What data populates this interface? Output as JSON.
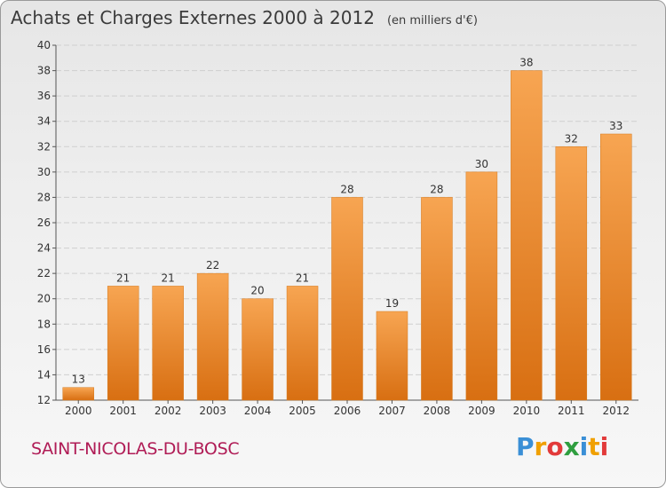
{
  "chart_data": {
    "type": "bar",
    "title": "Achats et Charges Externes 2000 à 2012",
    "subtitle": "(en milliers d'€)",
    "categories": [
      "2000",
      "2001",
      "2002",
      "2003",
      "2004",
      "2005",
      "2006",
      "2007",
      "2008",
      "2009",
      "2010",
      "2011",
      "2012"
    ],
    "values": [
      13,
      21,
      21,
      22,
      20,
      21,
      28,
      19,
      28,
      30,
      38,
      32,
      33
    ],
    "ylim": [
      12,
      40
    ],
    "yticks": [
      12,
      14,
      16,
      18,
      20,
      22,
      24,
      26,
      28,
      30,
      32,
      34,
      36,
      38,
      40
    ],
    "grid": true,
    "bar_color": "#f28c28"
  },
  "footer": {
    "city": "SAINT-NICOLAS-DU-BOSC",
    "city_color": "#b01c56",
    "logo_letters": [
      "P",
      "r",
      "o",
      "x",
      "i",
      "t",
      "i"
    ],
    "logo_colors": [
      "#3a8fd6",
      "#f0a000",
      "#e23a3a",
      "#2f9e3f",
      "#3a8fd6",
      "#f0a000",
      "#e23a3a"
    ]
  }
}
